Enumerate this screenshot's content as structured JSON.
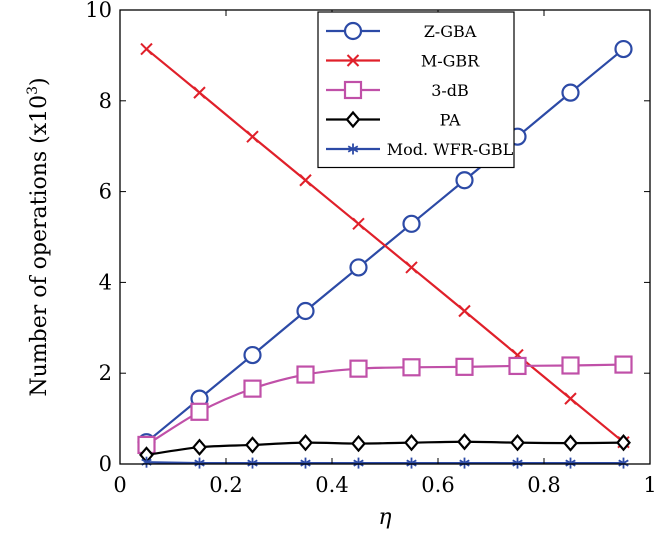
{
  "chart_data": {
    "type": "line",
    "title": "",
    "xlabel": "η",
    "ylabel_main": "Number of operations (x10",
    "ylabel_sup": "3",
    "ylabel_close": ")",
    "xlim": [
      0,
      1
    ],
    "ylim": [
      0,
      10
    ],
    "x_ticks": [
      0,
      0.2,
      0.4,
      0.6,
      0.8,
      1
    ],
    "x_tick_labels": [
      "0",
      "0.2",
      "0.4",
      "0.6",
      "0.8",
      "1"
    ],
    "y_ticks": [
      0,
      2,
      4,
      6,
      8,
      10
    ],
    "y_tick_labels": [
      "0",
      "2",
      "4",
      "6",
      "8",
      "10"
    ],
    "grid": false,
    "legend_position": "top-right",
    "x": [
      0.05,
      0.15,
      0.25,
      0.35,
      0.45,
      0.55,
      0.65,
      0.75,
      0.85,
      0.95
    ],
    "series": [
      {
        "name": "Z-GBA",
        "color": "#2c4aa6",
        "marker": "circle",
        "values": [
          0.48,
          1.44,
          2.4,
          3.37,
          4.33,
          5.29,
          6.25,
          7.21,
          8.18,
          9.14
        ]
      },
      {
        "name": "M-GBR",
        "color": "#e0202a",
        "marker": "x",
        "values": [
          9.14,
          8.18,
          7.21,
          6.25,
          5.29,
          4.33,
          3.37,
          2.4,
          1.44,
          0.48
        ]
      },
      {
        "name": "3-dB",
        "color": "#c050a8",
        "marker": "square",
        "values": [
          0.42,
          1.15,
          1.66,
          1.97,
          2.1,
          2.13,
          2.14,
          2.16,
          2.17,
          2.19
        ]
      },
      {
        "name": "PA",
        "color": "#000000",
        "marker": "diamond",
        "values": [
          0.2,
          0.37,
          0.42,
          0.47,
          0.45,
          0.47,
          0.49,
          0.47,
          0.46,
          0.47
        ]
      },
      {
        "name": "Mod. WFR-GBL",
        "color": "#2c4aa6",
        "marker": "asterisk",
        "values": [
          0.04,
          0.02,
          0.02,
          0.02,
          0.02,
          0.02,
          0.02,
          0.02,
          0.02,
          0.02
        ]
      }
    ]
  }
}
